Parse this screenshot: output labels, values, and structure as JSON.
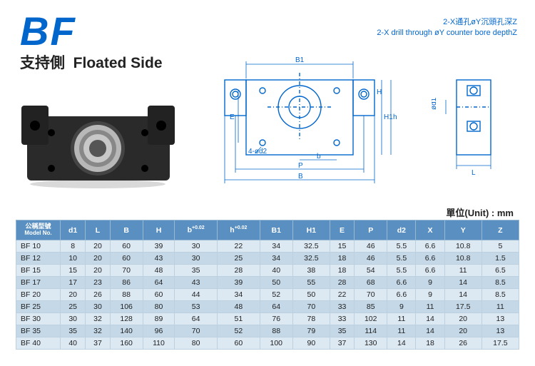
{
  "header": {
    "code": "BF",
    "subtitle_zh": "支持側",
    "subtitle_en": "Floated Side"
  },
  "annotation": {
    "line1": "2-X通孔øY沉頭孔深Z",
    "line2": "2-X drill through øY counter bore depthZ"
  },
  "unit_label": "單位(Unit) : mm",
  "diagram_labels": {
    "B1": "B1",
    "B": "B",
    "P": "P",
    "b": "b",
    "H": "H",
    "H1": "H1",
    "h": "h",
    "E": "E",
    "L": "L",
    "d1": "ød1",
    "d2_note": "4-ød2"
  },
  "colors": {
    "accent": "#0066cc",
    "header_bg": "#5a8fc2",
    "row_odd": "#dce8f2",
    "row_even": "#c4d8e8",
    "border": "#bcd0e0",
    "text": "#222222",
    "photo_body": "#2a2a2a",
    "photo_bearing": "#b8b8b8"
  },
  "table": {
    "columns": [
      {
        "key": "model",
        "label_zh": "公稱型號",
        "label_en": "Model No."
      },
      {
        "key": "d1",
        "label": "d1"
      },
      {
        "key": "L",
        "label": "L"
      },
      {
        "key": "B",
        "label": "B"
      },
      {
        "key": "H",
        "label": "H"
      },
      {
        "key": "b",
        "label": "b",
        "sup": "+0.02"
      },
      {
        "key": "h",
        "label": "h",
        "sup": "+0.02"
      },
      {
        "key": "B1",
        "label": "B1"
      },
      {
        "key": "H1",
        "label": "H1"
      },
      {
        "key": "E",
        "label": "E"
      },
      {
        "key": "P",
        "label": "P"
      },
      {
        "key": "d2",
        "label": "d2"
      },
      {
        "key": "X",
        "label": "X"
      },
      {
        "key": "Y",
        "label": "Y"
      },
      {
        "key": "Z",
        "label": "Z"
      }
    ],
    "rows": [
      [
        "BF 10",
        "8",
        "20",
        "60",
        "39",
        "30",
        "22",
        "34",
        "32.5",
        "15",
        "46",
        "5.5",
        "6.6",
        "10.8",
        "5"
      ],
      [
        "BF 12",
        "10",
        "20",
        "60",
        "43",
        "30",
        "25",
        "34",
        "32.5",
        "18",
        "46",
        "5.5",
        "6.6",
        "10.8",
        "1.5"
      ],
      [
        "BF 15",
        "15",
        "20",
        "70",
        "48",
        "35",
        "28",
        "40",
        "38",
        "18",
        "54",
        "5.5",
        "6.6",
        "11",
        "6.5"
      ],
      [
        "BF 17",
        "17",
        "23",
        "86",
        "64",
        "43",
        "39",
        "50",
        "55",
        "28",
        "68",
        "6.6",
        "9",
        "14",
        "8.5"
      ],
      [
        "BF 20",
        "20",
        "26",
        "88",
        "60",
        "44",
        "34",
        "52",
        "50",
        "22",
        "70",
        "6.6",
        "9",
        "14",
        "8.5"
      ],
      [
        "BF 25",
        "25",
        "30",
        "106",
        "80",
        "53",
        "48",
        "64",
        "70",
        "33",
        "85",
        "9",
        "11",
        "17.5",
        "11"
      ],
      [
        "BF 30",
        "30",
        "32",
        "128",
        "89",
        "64",
        "51",
        "76",
        "78",
        "33",
        "102",
        "11",
        "14",
        "20",
        "13"
      ],
      [
        "BF 35",
        "35",
        "32",
        "140",
        "96",
        "70",
        "52",
        "88",
        "79",
        "35",
        "114",
        "11",
        "14",
        "20",
        "13"
      ],
      [
        "BF 40",
        "40",
        "37",
        "160",
        "110",
        "80",
        "60",
        "100",
        "90",
        "37",
        "130",
        "14",
        "18",
        "26",
        "17.5"
      ]
    ]
  }
}
